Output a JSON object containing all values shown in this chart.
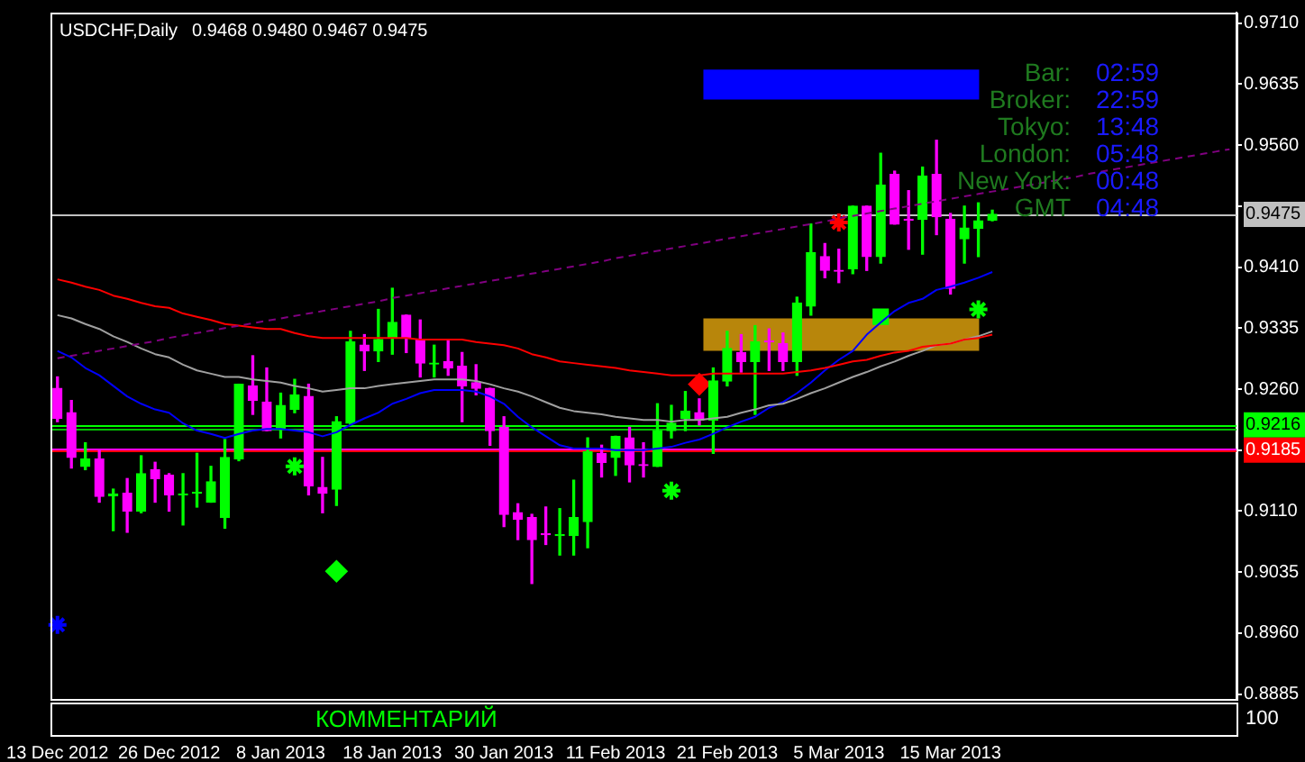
{
  "chart_data": {
    "type": "candlestick",
    "title": "USDCHF,Daily",
    "subtitle": "0.9468 0.9480 0.9467 0.9475",
    "grid": false,
    "legend": false,
    "categories": [
      "13 Dec 2012",
      null,
      null,
      null,
      null,
      null,
      null,
      null,
      "26 Dec 2012",
      null,
      null,
      null,
      null,
      null,
      null,
      null,
      "8 Jan 2013",
      null,
      null,
      null,
      null,
      null,
      null,
      null,
      "18 Jan 2013",
      null,
      null,
      null,
      null,
      null,
      null,
      null,
      "30 Jan 2013",
      null,
      null,
      null,
      null,
      null,
      null,
      null,
      "11 Feb 2013",
      null,
      null,
      null,
      null,
      null,
      null,
      null,
      "21 Feb 2013",
      null,
      null,
      null,
      null,
      null,
      null,
      null,
      "5 Mar 2013",
      null,
      null,
      null,
      null,
      null,
      null,
      null,
      "15 Mar 2013",
      null,
      null,
      null,
      null,
      null,
      null,
      null,
      null,
      null,
      null,
      null,
      null,
      null,
      null,
      null,
      null,
      null,
      null,
      null,
      null
    ],
    "ylim": [
      0.8879,
      0.9723
    ],
    "yticks": [
      {
        "value": 0.971,
        "label": "0.9710"
      },
      {
        "value": 0.9635,
        "label": "0.9635"
      },
      {
        "value": 0.956,
        "label": "0.9560"
      },
      {
        "value": 0.9485,
        "label": null
      },
      {
        "value": 0.941,
        "label": "0.9410"
      },
      {
        "value": 0.9335,
        "label": "0.9335"
      },
      {
        "value": 0.926,
        "label": "0.9260"
      },
      {
        "value": 0.9185,
        "label": null
      },
      {
        "value": 0.911,
        "label": "0.9110"
      },
      {
        "value": 0.9035,
        "label": "0.9035"
      },
      {
        "value": 0.896,
        "label": "0.8960"
      },
      {
        "value": 0.8885,
        "label": "0.8885"
      }
    ],
    "series": [
      {
        "type": "line",
        "color": "#800080",
        "line_style": "dashed",
        "values": [
          0.9298,
          0.9301,
          0.9304,
          0.9307,
          0.931,
          0.9313,
          0.9316,
          0.9319,
          0.9323,
          0.9326,
          0.9329,
          0.9332,
          0.9335,
          0.9338,
          0.9341,
          0.9344,
          0.9347,
          0.935,
          0.9353,
          0.9356,
          0.9359,
          0.9362,
          0.9365,
          0.9368,
          0.9372,
          0.9375,
          0.9378,
          0.9381,
          0.9384,
          0.9387,
          0.939,
          0.9393,
          0.9396,
          0.9399,
          0.9402,
          0.9405,
          0.9408,
          0.9411,
          0.9414,
          0.9417,
          0.9421,
          0.9424,
          0.9427,
          0.943,
          0.9433,
          0.9436,
          0.9439,
          0.9442,
          0.9445,
          0.9448,
          0.9451,
          0.9454,
          0.9457,
          0.946,
          0.9463,
          0.9466,
          0.947,
          0.9473,
          0.9476,
          0.9479,
          0.9482,
          0.9485,
          0.9488,
          0.9491,
          0.9494,
          0.9497,
          0.95,
          0.9503,
          0.9506,
          0.9509,
          0.9512,
          0.9515,
          0.9518,
          0.9521,
          0.9525,
          0.9528,
          0.9531,
          0.9534,
          0.9537,
          0.954,
          0.9543,
          0.9546,
          0.9549,
          0.9552,
          0.9555
        ]
      },
      {
        "type": "line",
        "color": "#ff0000",
        "values": [
          0.9395,
          0.9391,
          0.9386,
          0.9382,
          0.9375,
          0.9371,
          0.9366,
          0.9362,
          0.936,
          0.9353,
          0.9349,
          0.9345,
          0.934,
          0.9338,
          0.9336,
          0.9334,
          0.9334,
          0.9329,
          0.9325,
          0.9323,
          0.9323,
          0.9323,
          0.9323,
          0.9323,
          0.9323,
          0.9323,
          0.9321,
          0.9321,
          0.9321,
          0.9321,
          0.9318,
          0.9316,
          0.9314,
          0.931,
          0.9303,
          0.9299,
          0.9294,
          0.9292,
          0.929,
          0.9288,
          0.9286,
          0.9283,
          0.9281,
          0.9279,
          0.9277,
          0.9277,
          0.9277,
          0.9279,
          0.9279,
          0.9279,
          0.9279,
          0.9279,
          0.9279,
          0.9281,
          0.9283,
          0.9286,
          0.929,
          0.9294,
          0.9296,
          0.9301,
          0.9305,
          0.9307,
          0.9312,
          0.9314,
          0.9316,
          0.9321,
          0.9323,
          0.9327,
          null,
          null,
          null,
          null,
          null,
          null,
          null,
          null,
          null,
          null,
          null,
          null,
          null,
          null,
          null,
          null,
          null
        ]
      },
      {
        "type": "line",
        "color": "#a0a0a0",
        "values": [
          0.9351,
          0.9347,
          0.934,
          0.9334,
          0.9325,
          0.9318,
          0.931,
          0.9303,
          0.9299,
          0.929,
          0.9283,
          0.9279,
          0.9275,
          0.9275,
          0.9272,
          0.927,
          0.9268,
          0.9264,
          0.9261,
          0.9257,
          0.9259,
          0.9261,
          0.9261,
          0.9264,
          0.9266,
          0.9268,
          0.927,
          0.9272,
          0.9272,
          0.9272,
          0.927,
          0.9266,
          0.9261,
          0.9257,
          0.9251,
          0.9244,
          0.9237,
          0.9233,
          0.9231,
          0.9229,
          0.9226,
          0.9224,
          0.9222,
          0.9222,
          0.922,
          0.9222,
          0.9222,
          0.9224,
          0.9226,
          0.9231,
          0.9235,
          0.924,
          0.9242,
          0.9248,
          0.9255,
          0.9261,
          0.9268,
          0.9275,
          0.9281,
          0.9288,
          0.9294,
          0.9301,
          0.9307,
          0.9314,
          0.9316,
          0.9321,
          0.9325,
          0.9331,
          null,
          null,
          null,
          null,
          null,
          null,
          null,
          null,
          null,
          null,
          null,
          null,
          null,
          null,
          null,
          null,
          null
        ]
      },
      {
        "type": "line",
        "color": "#0000ff",
        "values": [
          0.9307,
          0.9299,
          0.9286,
          0.9277,
          0.9264,
          0.9251,
          0.9242,
          0.9235,
          0.9231,
          0.9218,
          0.9209,
          0.9205,
          0.92,
          0.9205,
          0.9209,
          0.9211,
          0.9211,
          0.9209,
          0.9207,
          0.9202,
          0.9207,
          0.9216,
          0.9224,
          0.9231,
          0.9242,
          0.9248,
          0.9255,
          0.9259,
          0.9259,
          0.9259,
          0.9257,
          0.9251,
          0.9242,
          0.9226,
          0.9213,
          0.9202,
          0.9191,
          0.9187,
          0.9187,
          0.9187,
          0.9185,
          0.9185,
          0.9185,
          0.9187,
          0.9189,
          0.9194,
          0.9198,
          0.9205,
          0.9213,
          0.922,
          0.9226,
          0.9237,
          0.9244,
          0.9255,
          0.9268,
          0.9283,
          0.9296,
          0.9307,
          0.9327,
          0.9342,
          0.9356,
          0.9366,
          0.9371,
          0.9382,
          0.9386,
          0.9391,
          0.9397,
          0.9404,
          null,
          null,
          null,
          null,
          null,
          null,
          null,
          null,
          null,
          null,
          null,
          null,
          null,
          null,
          null,
          null,
          null
        ]
      },
      {
        "type": "candlestick",
        "colors": [
          "#ff00ff",
          "#ff00ff",
          "#00ff00",
          "#ff00ff",
          "#00ff00",
          "#ff00ff",
          "#00ff00",
          "#ff00ff",
          "#ff00ff",
          "#00ff00",
          "#00ff00",
          "#00ff00",
          "#00ff00",
          "#00ff00",
          "#ff00ff",
          "#ff00ff",
          "#00ff00",
          "#00ff00",
          "#ff00ff",
          "#ff00ff",
          "#00ff00",
          "#00ff00",
          "#ff00ff",
          "#00ff00",
          "#00ff00",
          "#ff00ff",
          "#ff00ff",
          "#00ff00",
          "#ff00ff",
          "#ff00ff",
          "#ff00ff",
          "#ff00ff",
          "#ff00ff",
          "#ff00ff",
          "#ff00ff",
          "#ff00ff",
          "#00ff00",
          "#00ff00",
          "#00ff00",
          "#ff00ff",
          "#00ff00",
          "#ff00ff",
          "#ff00ff",
          "#00ff00",
          "#00ff00",
          "#00ff00",
          "#ff00ff",
          "#00ff00",
          "#00ff00",
          "#ff00ff",
          "#00ff00",
          "#ff00ff",
          "#ff00ff",
          "#00ff00",
          "#00ff00",
          "#ff00ff",
          "#ff00ff",
          "#00ff00",
          "#ff00ff",
          "#00ff00",
          "#ff00ff",
          "#ff00ff",
          "#00ff00",
          "#ff00ff",
          "#ff00ff",
          "#00ff00",
          "#00ff00",
          "#00ff00",
          null,
          null,
          null,
          null,
          null,
          null,
          null,
          null,
          null,
          null,
          null,
          null,
          null,
          null,
          null,
          null,
          null
        ],
        "ohlc": [
          [
            0.9261,
            0.9275,
            0.922,
            0.9224
          ],
          [
            0.9231,
            0.9246,
            0.9163,
            0.9176
          ],
          [
            0.9165,
            0.9194,
            0.9161,
            0.9174
          ],
          [
            0.9174,
            0.9185,
            0.9121,
            0.9128
          ],
          [
            0.9129,
            0.9137,
            0.9086,
            0.9131
          ],
          [
            0.9132,
            0.915,
            0.9084,
            0.911
          ],
          [
            0.911,
            0.9178,
            0.9108,
            0.9156
          ],
          [
            0.9161,
            0.917,
            0.9121,
            0.915
          ],
          [
            0.9154,
            0.9156,
            0.911,
            0.913
          ],
          [
            0.913,
            0.9156,
            0.9093,
            0.9131
          ],
          [
            0.9132,
            0.9181,
            0.9115,
            0.9133
          ],
          [
            0.9121,
            0.9165,
            0.9121,
            0.9146
          ],
          [
            0.9102,
            0.9198,
            0.9089,
            0.9176
          ],
          [
            0.9174,
            0.9266,
            0.9172,
            0.9266
          ],
          [
            0.9264,
            0.9301,
            0.9229,
            0.9246
          ],
          [
            0.9244,
            0.9286,
            0.9209,
            0.9209
          ],
          [
            0.9211,
            0.9255,
            0.92,
            0.924
          ],
          [
            0.9235,
            0.9272,
            0.9231,
            0.9253
          ],
          [
            0.9251,
            0.9266,
            0.913,
            0.9141
          ],
          [
            0.9139,
            0.9176,
            0.9108,
            0.9132
          ],
          [
            0.9137,
            0.9226,
            0.9117,
            0.922
          ],
          [
            0.9218,
            0.9331,
            0.9216,
            0.9318
          ],
          [
            0.9314,
            0.9327,
            0.9283,
            0.9307
          ],
          [
            0.9307,
            0.9358,
            0.9294,
            0.9321
          ],
          [
            0.9323,
            0.9384,
            0.9303,
            0.9342
          ],
          [
            0.9351,
            0.9351,
            0.9305,
            0.9323
          ],
          [
            0.9321,
            0.9345,
            0.9275,
            0.9292
          ],
          [
            0.9291,
            0.9314,
            0.9275,
            0.9292
          ],
          [
            0.9294,
            0.9321,
            0.9277,
            0.9286
          ],
          [
            0.9288,
            0.9305,
            0.922,
            0.9264
          ],
          [
            0.9268,
            0.929,
            0.9253,
            0.9261
          ],
          [
            0.9261,
            0.9261,
            0.9191,
            0.9209
          ],
          [
            0.9213,
            0.9226,
            0.9091,
            0.9106
          ],
          [
            0.9108,
            0.9119,
            0.9075,
            0.91
          ],
          [
            0.9102,
            0.9106,
            0.9021,
            0.9075
          ],
          [
            0.9082,
            0.9115,
            0.9069,
            0.9081
          ],
          [
            0.908,
            0.9113,
            0.9056,
            0.9081
          ],
          [
            0.908,
            0.9148,
            0.9056,
            0.9102
          ],
          [
            0.9097,
            0.92,
            0.9065,
            0.9183
          ],
          [
            0.9181,
            0.9191,
            0.9152,
            0.917
          ],
          [
            0.9176,
            0.9202,
            0.9154,
            0.9202
          ],
          [
            0.92,
            0.9213,
            0.9146,
            0.9167
          ],
          [
            0.9167,
            0.9194,
            0.9152,
            0.9166
          ],
          [
            0.9165,
            0.9242,
            0.9165,
            0.9209
          ],
          [
            0.9209,
            0.924,
            0.92,
            0.9218
          ],
          [
            0.9224,
            0.9257,
            0.9209,
            0.9233
          ],
          [
            0.9231,
            0.9248,
            0.9216,
            0.9222
          ],
          [
            0.9222,
            0.9286,
            0.9181,
            0.927
          ],
          [
            0.927,
            0.9331,
            0.9264,
            0.931
          ],
          [
            0.9305,
            0.9327,
            0.9281,
            0.9294
          ],
          [
            0.9294,
            0.9338,
            0.9229,
            0.9318
          ],
          [
            0.9319,
            0.9334,
            0.9283,
            0.9318
          ],
          [
            0.9316,
            0.9329,
            0.9283,
            0.9294
          ],
          [
            0.9294,
            0.9373,
            0.9277,
            0.9366
          ],
          [
            0.9362,
            0.9463,
            0.9351,
            0.9428
          ],
          [
            0.9423,
            0.9439,
            0.9397,
            0.9406
          ],
          [
            0.9406,
            0.9432,
            0.9391,
            0.9405
          ],
          [
            0.9408,
            0.9485,
            0.9402,
            0.9485
          ],
          [
            0.9485,
            0.9485,
            0.9406,
            0.9423
          ],
          [
            0.9423,
            0.955,
            0.9415,
            0.9511
          ],
          [
            0.9524,
            0.9528,
            0.9463,
            0.9463
          ],
          [
            0.9469,
            0.9504,
            0.9432,
            0.9468
          ],
          [
            0.9469,
            0.9533,
            0.9426,
            0.9522
          ],
          [
            0.9524,
            0.9566,
            0.945,
            0.9472
          ],
          [
            0.9469,
            0.9476,
            0.9377,
            0.9384
          ],
          [
            0.9445,
            0.9485,
            0.9415,
            0.9458
          ],
          [
            0.9458,
            0.9489,
            0.9423,
            0.9467
          ],
          [
            0.9468,
            0.948,
            0.9467,
            0.9475
          ],
          null,
          null,
          null,
          null,
          null,
          null,
          null,
          null,
          null,
          null,
          null,
          null,
          null,
          null,
          null,
          null,
          null
        ]
      },
      {
        "type": "scatter",
        "color": "#ff0000",
        "marker": "cross",
        "values": [
          null,
          null,
          null,
          null,
          null,
          null,
          null,
          null,
          null,
          null,
          null,
          null,
          null,
          null,
          null,
          null,
          null,
          null,
          null,
          null,
          null,
          null,
          null,
          null,
          null,
          null,
          null,
          null,
          null,
          null,
          null,
          null,
          null,
          null,
          null,
          null,
          null,
          null,
          null,
          null,
          null,
          null,
          null,
          null,
          null,
          null,
          null,
          null,
          null,
          null,
          null,
          null,
          null,
          null,
          null,
          null,
          0.9465,
          null,
          null,
          null,
          null,
          null,
          null,
          null,
          null,
          null,
          null,
          null,
          null,
          null,
          null,
          null,
          null,
          null,
          null,
          null,
          null,
          null,
          null,
          null,
          null,
          null,
          null,
          null,
          null
        ]
      },
      {
        "type": "scatter",
        "color": "#00ff00",
        "marker": "square",
        "values": [
          null,
          null,
          null,
          null,
          null,
          null,
          null,
          null,
          null,
          null,
          null,
          null,
          null,
          null,
          null,
          null,
          null,
          null,
          null,
          null,
          null,
          null,
          null,
          null,
          null,
          null,
          null,
          null,
          null,
          null,
          null,
          null,
          null,
          null,
          null,
          null,
          null,
          null,
          null,
          null,
          null,
          null,
          null,
          null,
          null,
          null,
          null,
          null,
          null,
          null,
          null,
          null,
          null,
          null,
          null,
          null,
          null,
          null,
          null,
          0.9349,
          null,
          null,
          null,
          null,
          null,
          null,
          null,
          null,
          null,
          null,
          null,
          null,
          null,
          null,
          null,
          null,
          null,
          null,
          null,
          null,
          null,
          null,
          null,
          null,
          null
        ]
      },
      {
        "type": "scatter",
        "color": "#00ff00",
        "marker": "cross",
        "values": [
          null,
          null,
          null,
          null,
          null,
          null,
          null,
          null,
          null,
          null,
          null,
          null,
          null,
          null,
          null,
          null,
          null,
          0.9165,
          null,
          null,
          null,
          null,
          null,
          null,
          null,
          null,
          null,
          null,
          null,
          null,
          null,
          null,
          null,
          null,
          null,
          null,
          null,
          null,
          null,
          null,
          null,
          null,
          null,
          null,
          null,
          null,
          null,
          null,
          null,
          null,
          null,
          null,
          null,
          null,
          null,
          null,
          null,
          null,
          null,
          null,
          null,
          null,
          null,
          null,
          null,
          null,
          0.9358,
          null,
          null,
          null,
          null,
          null,
          null,
          null,
          null,
          null,
          null,
          null,
          null,
          null,
          null,
          null,
          null,
          null,
          null
        ]
      },
      {
        "type": "scatter",
        "color": "#ff0000",
        "marker": "diamond",
        "values": [
          null,
          null,
          null,
          null,
          null,
          null,
          null,
          null,
          null,
          null,
          null,
          null,
          null,
          null,
          null,
          null,
          null,
          null,
          null,
          null,
          null,
          null,
          null,
          null,
          null,
          null,
          null,
          null,
          null,
          null,
          null,
          null,
          null,
          null,
          null,
          null,
          null,
          null,
          null,
          null,
          null,
          null,
          null,
          null,
          null,
          null,
          0.9266,
          null,
          null,
          null,
          null,
          null,
          null,
          null,
          null,
          null,
          null,
          null,
          null,
          null,
          null,
          null,
          null,
          null,
          null,
          null,
          null,
          null,
          null,
          null,
          null,
          null,
          null,
          null,
          null,
          null,
          null,
          null,
          null,
          null,
          null,
          null,
          null,
          null,
          null
        ]
      },
      {
        "type": "scatter",
        "color": "#00ff00",
        "marker": "cross",
        "values": [
          null,
          null,
          null,
          null,
          null,
          null,
          null,
          null,
          null,
          null,
          null,
          null,
          null,
          null,
          null,
          null,
          null,
          null,
          null,
          null,
          null,
          null,
          null,
          null,
          null,
          null,
          null,
          null,
          null,
          null,
          null,
          null,
          null,
          null,
          null,
          null,
          null,
          null,
          null,
          null,
          null,
          null,
          null,
          null,
          0.9135,
          null,
          null,
          null,
          null,
          null,
          null,
          null,
          null,
          null,
          null,
          null,
          null,
          null,
          null,
          null,
          null,
          null,
          null,
          null,
          null,
          null,
          null,
          null,
          null,
          null,
          null,
          null,
          null,
          null,
          null,
          null,
          null,
          null,
          null,
          null,
          null,
          null,
          null,
          null,
          null
        ]
      },
      {
        "type": "scatter",
        "color": "#00ff00",
        "marker": "diamond",
        "values": [
          null,
          null,
          null,
          null,
          null,
          null,
          null,
          null,
          null,
          null,
          null,
          null,
          null,
          null,
          null,
          null,
          null,
          null,
          null,
          null,
          0.9036,
          null,
          null,
          null,
          null,
          null,
          null,
          null,
          null,
          null,
          null,
          null,
          null,
          null,
          null,
          null,
          null,
          null,
          null,
          null,
          null,
          null,
          null,
          null,
          null,
          null,
          null,
          null,
          null,
          null,
          null,
          null,
          null,
          null,
          null,
          null,
          null,
          null,
          null,
          null,
          null,
          null,
          null,
          null,
          null,
          null,
          null,
          null,
          null,
          null,
          null,
          null,
          null,
          null,
          null,
          null,
          null,
          null,
          null,
          null,
          null,
          null,
          null,
          null,
          null
        ]
      },
      {
        "type": "scatter",
        "color": "#0000ff",
        "marker": "cross",
        "values": [
          0.897,
          null,
          null,
          null,
          null,
          null,
          null,
          null,
          null,
          null,
          null,
          null,
          null,
          null,
          null,
          null,
          null,
          null,
          null,
          null,
          null,
          null,
          null,
          null,
          null,
          null,
          null,
          null,
          null,
          null,
          null,
          null,
          null,
          null,
          null,
          null,
          null,
          null,
          null,
          null,
          null,
          null,
          null,
          null,
          null,
          null,
          null,
          null,
          null,
          null,
          null,
          null,
          null,
          null,
          null,
          null,
          null,
          null,
          null,
          null,
          null,
          null,
          null,
          null,
          null,
          null,
          null,
          null,
          null,
          null,
          null,
          null,
          null,
          null,
          null,
          null,
          null,
          null,
          null,
          null,
          null,
          null,
          null,
          null,
          null
        ]
      }
    ],
    "ref_lines": [
      {
        "axis": "y",
        "value": 0.9475,
        "label": "0.9475",
        "color": "#c0c0c0"
      },
      {
        "axis": "y",
        "value": 0.9216,
        "label": "0.9216",
        "color": "#00ff00"
      },
      {
        "axis": "y",
        "value": 0.9212,
        "label": null,
        "color": "#00c000"
      },
      {
        "axis": "y",
        "value": 0.9188,
        "label": null,
        "color": "#ff00ff"
      },
      {
        "axis": "y",
        "value": 0.9185,
        "label": "0.9185",
        "color": "#ff0000"
      }
    ],
    "bands": [
      {
        "axis": "y",
        "from": 0.9616,
        "to": 0.9653,
        "color": "#0000ff"
      },
      {
        "axis": "y",
        "from": 0.9307,
        "to": 0.9347,
        "color": "#b8860b"
      }
    ],
    "annotations": [
      "Bar:",
      "02:59",
      "Broker:",
      "22:59",
      "Tokyo:",
      "13:48",
      "London:",
      "05:48",
      "New York:",
      "00:48",
      "GMT",
      "04:48",
      "КОММЕНТАРИЙ",
      "100"
    ]
  }
}
